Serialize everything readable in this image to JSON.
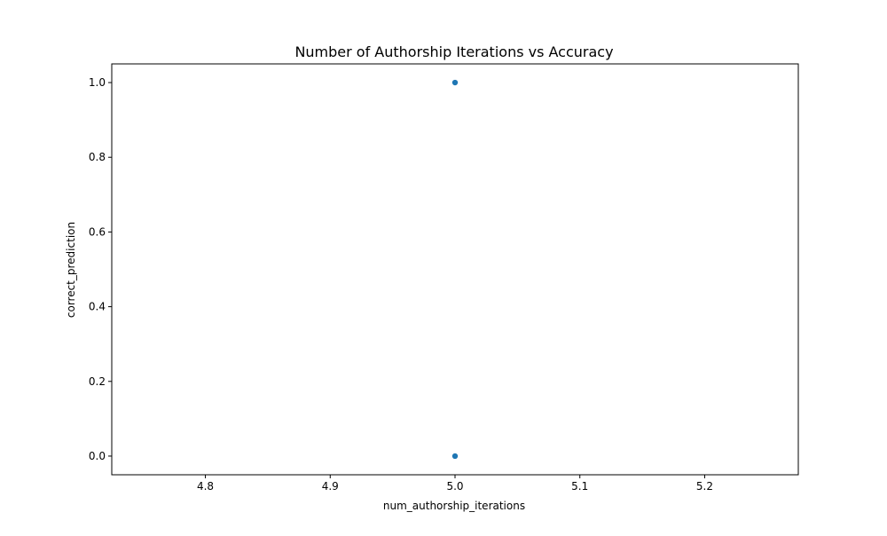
{
  "chart_data": {
    "type": "scatter",
    "title": "Number of Authorship Iterations vs Accuracy",
    "xlabel": "num_authorship_iterations",
    "ylabel": "correct_prediction",
    "xlim": [
      4.725,
      5.275
    ],
    "ylim": [
      -0.05,
      1.05
    ],
    "xticks": [
      4.8,
      4.9,
      5.0,
      5.1,
      5.2
    ],
    "xtick_labels": [
      "4.8",
      "4.9",
      "5.0",
      "5.1",
      "5.2"
    ],
    "yticks": [
      0.0,
      0.2,
      0.4,
      0.6,
      0.8,
      1.0
    ],
    "ytick_labels": [
      "0.0",
      "0.2",
      "0.4",
      "0.6",
      "0.8",
      "1.0"
    ],
    "grid": false,
    "point_color": "#1f77b4",
    "points": [
      {
        "x": 5.0,
        "y": 1.0
      },
      {
        "x": 5.0,
        "y": 0.0
      }
    ]
  }
}
